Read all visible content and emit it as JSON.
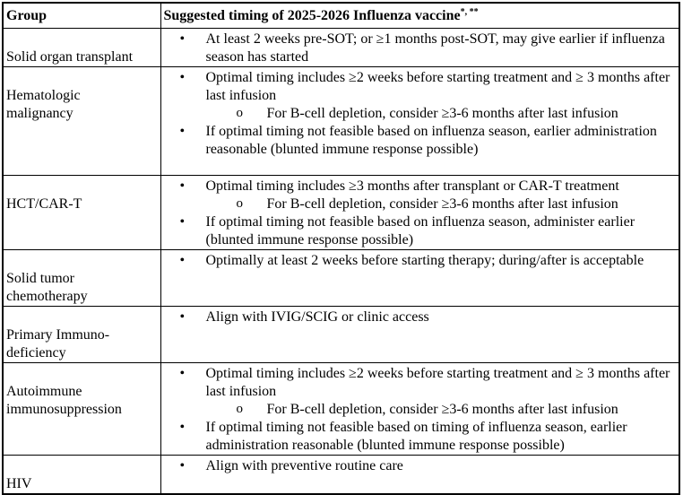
{
  "table": {
    "header": {
      "group": "Group",
      "timing": "Suggested timing of 2025-2026 Influenza vaccine",
      "timing_superscript": "*, **"
    },
    "markers": {
      "bullet": "•",
      "circle": "o"
    },
    "rows": [
      {
        "group": "Solid organ transplant",
        "items": [
          {
            "level": 1,
            "text": "At least 2 weeks pre-SOT; or ≥1 months post-SOT, may give earlier if influenza season has started"
          }
        ]
      },
      {
        "group": "Hematologic\nmalignancy",
        "items": [
          {
            "level": 1,
            "text": "Optimal timing includes ≥2 weeks before starting treatment and ≥ 3 months after last infusion"
          },
          {
            "level": 2,
            "text": "For B-cell depletion, consider ≥3-6 months after last infusion"
          },
          {
            "level": 1,
            "text": "If optimal timing not feasible based on influenza season, earlier administration reasonable (blunted immune response possible)"
          }
        ]
      },
      {
        "group": "HCT/CAR-T",
        "items": [
          {
            "level": 1,
            "text": "Optimal timing includes ≥3 months after transplant or CAR-T treatment"
          },
          {
            "level": 2,
            "text": "For B-cell depletion, consider ≥3-6 months after last infusion"
          },
          {
            "level": 1,
            "text": "If optimal timing not feasible based on influenza season, administer earlier (blunted immune response possible)"
          }
        ]
      },
      {
        "group": "Solid tumor\nchemotherapy",
        "items": [
          {
            "level": 1,
            "text": "Optimally at least 2 weeks before starting therapy; during/after is acceptable"
          }
        ]
      },
      {
        "group": "Primary Immuno-\ndeficiency",
        "items": [
          {
            "level": 1,
            "text": "Align with IVIG/SCIG or clinic access"
          }
        ]
      },
      {
        "group": "Autoimmune\nimmunosuppression",
        "items": [
          {
            "level": 1,
            "text": "Optimal timing includes ≥2 weeks before starting treatment and ≥ 3 months after last infusion"
          },
          {
            "level": 2,
            "text": "For B-cell depletion, consider ≥3-6 months after last infusion"
          },
          {
            "level": 1,
            "text": "If optimal timing not feasible based on timing of influenza season, earlier administration reasonable (blunted immune response possible)"
          }
        ]
      },
      {
        "group": "HIV",
        "items": [
          {
            "level": 1,
            "text": "Align with preventive routine care"
          }
        ]
      }
    ]
  }
}
